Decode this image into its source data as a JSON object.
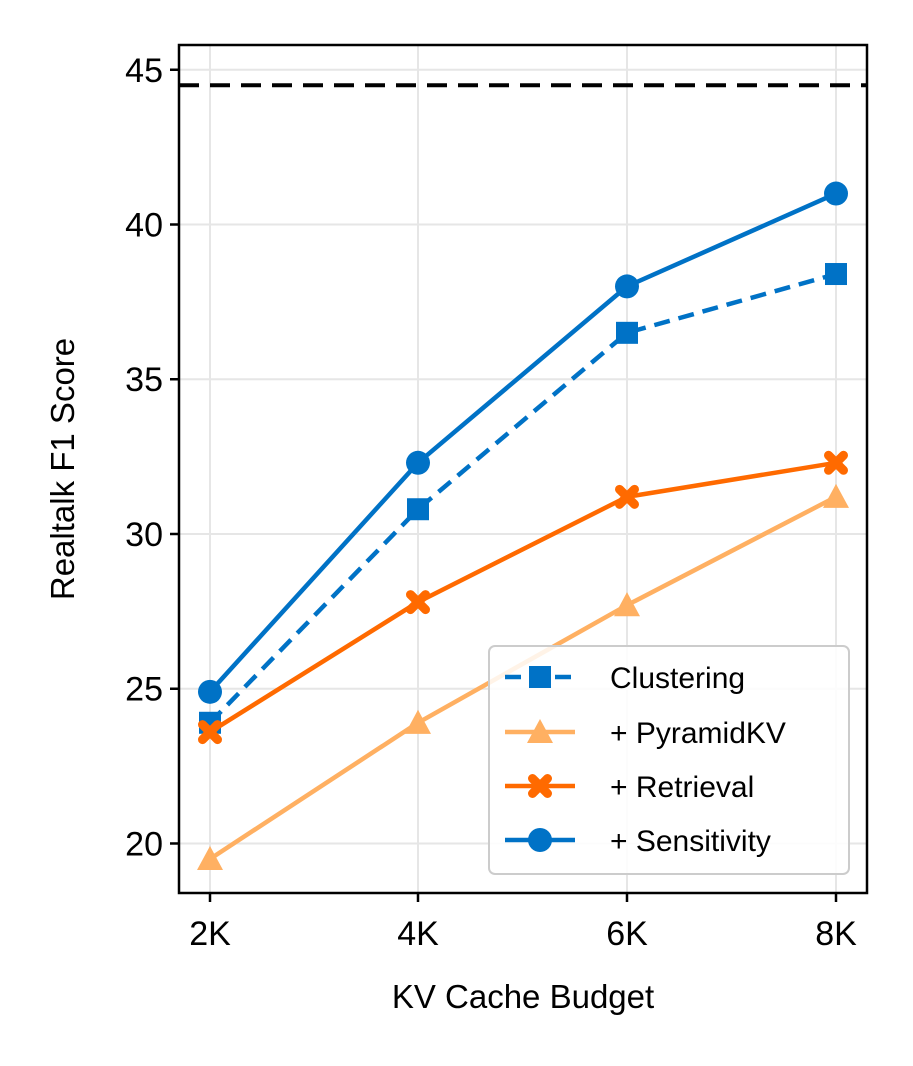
{
  "chart_data": {
    "type": "line",
    "categories": [
      "2K",
      "4K",
      "6K",
      "8K"
    ],
    "xlabel": "KV Cache Budget",
    "ylabel": "Realtalk F1 Score",
    "ylim": [
      18.4,
      45.8
    ],
    "yticks": [
      20,
      25,
      30,
      35,
      40,
      45
    ],
    "ytick_labels": [
      "20",
      "25",
      "30",
      "35",
      "40",
      "45"
    ],
    "grid": true,
    "reference_line": {
      "value": 44.5,
      "style": "dashed",
      "color": "#000000"
    },
    "legend_position": "lower-right",
    "series": [
      {
        "name": "Clustering",
        "values": [
          23.9,
          30.8,
          36.5,
          38.4
        ],
        "color": "#0072c6",
        "marker": "square",
        "linestyle": "dashed"
      },
      {
        "name": "+ PyramidKV",
        "values": [
          19.5,
          23.9,
          27.7,
          31.2
        ],
        "color": "#ffb062",
        "marker": "triangle",
        "linestyle": "solid"
      },
      {
        "name": "+ Retrieval",
        "values": [
          23.6,
          27.8,
          31.2,
          32.3
        ],
        "color": "#ff6a00",
        "marker": "x",
        "linestyle": "solid"
      },
      {
        "name": "+ Sensitivity",
        "values": [
          24.9,
          32.3,
          38.0,
          41.0
        ],
        "color": "#0072c6",
        "marker": "circle",
        "linestyle": "solid"
      }
    ]
  }
}
